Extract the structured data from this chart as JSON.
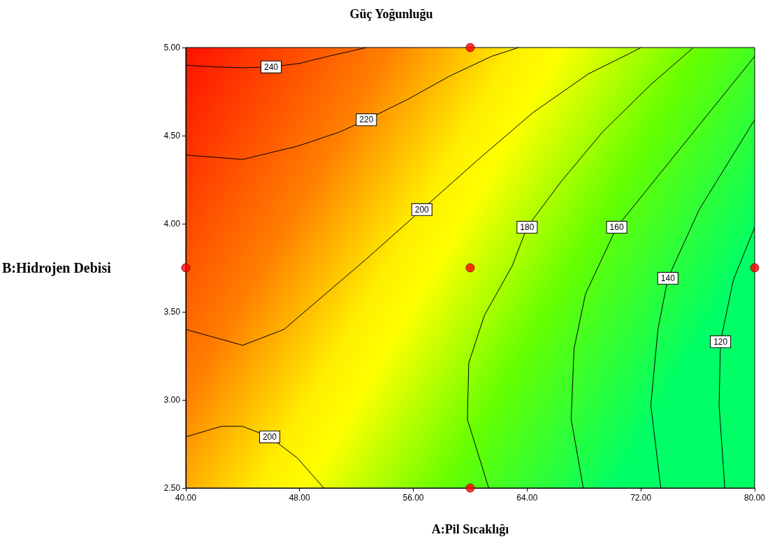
{
  "chart_data": {
    "type": "line",
    "title": "Güç Yoğunluğu",
    "xlabel": "A:Pil Sıcaklığı",
    "ylabel": "B:Hidrojen Debisi",
    "xlim": [
      40,
      80
    ],
    "ylim": [
      2.5,
      5
    ],
    "xticks": [
      {
        "value": 40,
        "label": "40.00"
      },
      {
        "value": 48,
        "label": "48.00"
      },
      {
        "value": 56,
        "label": "56.00"
      },
      {
        "value": 64,
        "label": "64.00"
      },
      {
        "value": 72,
        "label": "72.00"
      },
      {
        "value": 80,
        "label": "80.00"
      }
    ],
    "yticks": [
      {
        "value": 2.5,
        "label": "2.50"
      },
      {
        "value": 3,
        "label": "3.00"
      },
      {
        "value": 3.5,
        "label": "3.50"
      },
      {
        "value": 4,
        "label": "4.00"
      },
      {
        "value": 4.5,
        "label": "4.50"
      },
      {
        "value": 5,
        "label": "5.00"
      }
    ],
    "grid": false,
    "legend": false,
    "marker": "none",
    "line_style": "solid",
    "series": [
      {
        "name": "240",
        "color": "#000000",
        "x": [
          40,
          42,
          44,
          46,
          48,
          50,
          52.7
        ],
        "values": [
          4.9,
          4.89,
          4.885,
          4.89,
          4.91,
          4.95,
          5.0
        ]
      },
      {
        "name": "220",
        "color": "#000000",
        "x": [
          40,
          44,
          47.85,
          50.8,
          52.7,
          55.7,
          58.6,
          61.5,
          63.4
        ],
        "values": [
          4.39,
          4.365,
          4.44,
          4.52,
          4.59,
          4.71,
          4.84,
          4.95,
          5.0
        ]
      },
      {
        "name": "200",
        "color": "#000000",
        "x": [
          40,
          44,
          46.9,
          49.8,
          52.7,
          56.6,
          60.5,
          64.4,
          68.3,
          71.3,
          72
        ],
        "values": [
          3.4,
          3.31,
          3.4,
          3.6,
          3.8,
          4.08,
          4.36,
          4.63,
          4.85,
          4.97,
          5.0
        ]
      },
      {
        "name": "200",
        "color": "#000000",
        "x": [
          40,
          42.5,
          44,
          45.9,
          47.85,
          49.7
        ],
        "values": [
          2.79,
          2.85,
          2.85,
          2.79,
          2.67,
          2.5
        ]
      },
      {
        "name": "180",
        "color": "#000000",
        "x": [
          61.3,
          59.8,
          59.9,
          61,
          62.95,
          64,
          66.4,
          69.3,
          72.7,
          75.7
        ],
        "values": [
          2.5,
          2.89,
          3.21,
          3.48,
          3.76,
          3.98,
          4.24,
          4.52,
          4.79,
          5.0
        ]
      },
      {
        "name": "160",
        "color": "#000000",
        "x": [
          67.95,
          67.1,
          67.3,
          68.1,
          70.3,
          73.7,
          77.6,
          80
        ],
        "values": [
          2.5,
          2.89,
          3.29,
          3.6,
          3.98,
          4.32,
          4.71,
          4.95
        ]
      },
      {
        "name": "140",
        "color": "#000000",
        "x": [
          73.4,
          72.7,
          73.2,
          73.9,
          76.1,
          80
        ],
        "values": [
          2.5,
          2.97,
          3.4,
          3.69,
          4.08,
          4.59
        ]
      },
      {
        "name": "120",
        "color": "#000000",
        "x": [
          77.9,
          77.5,
          77.6,
          78.5,
          80
        ],
        "values": [
          2.5,
          2.97,
          3.33,
          3.68,
          3.98
        ]
      },
      {
        "type": "scatter",
        "marker": "circle",
        "color": "#ff0000",
        "x": [
          40,
          60,
          60,
          60,
          80
        ],
        "values": [
          3.75,
          5,
          3.75,
          2.5,
          3.75
        ]
      }
    ]
  }
}
